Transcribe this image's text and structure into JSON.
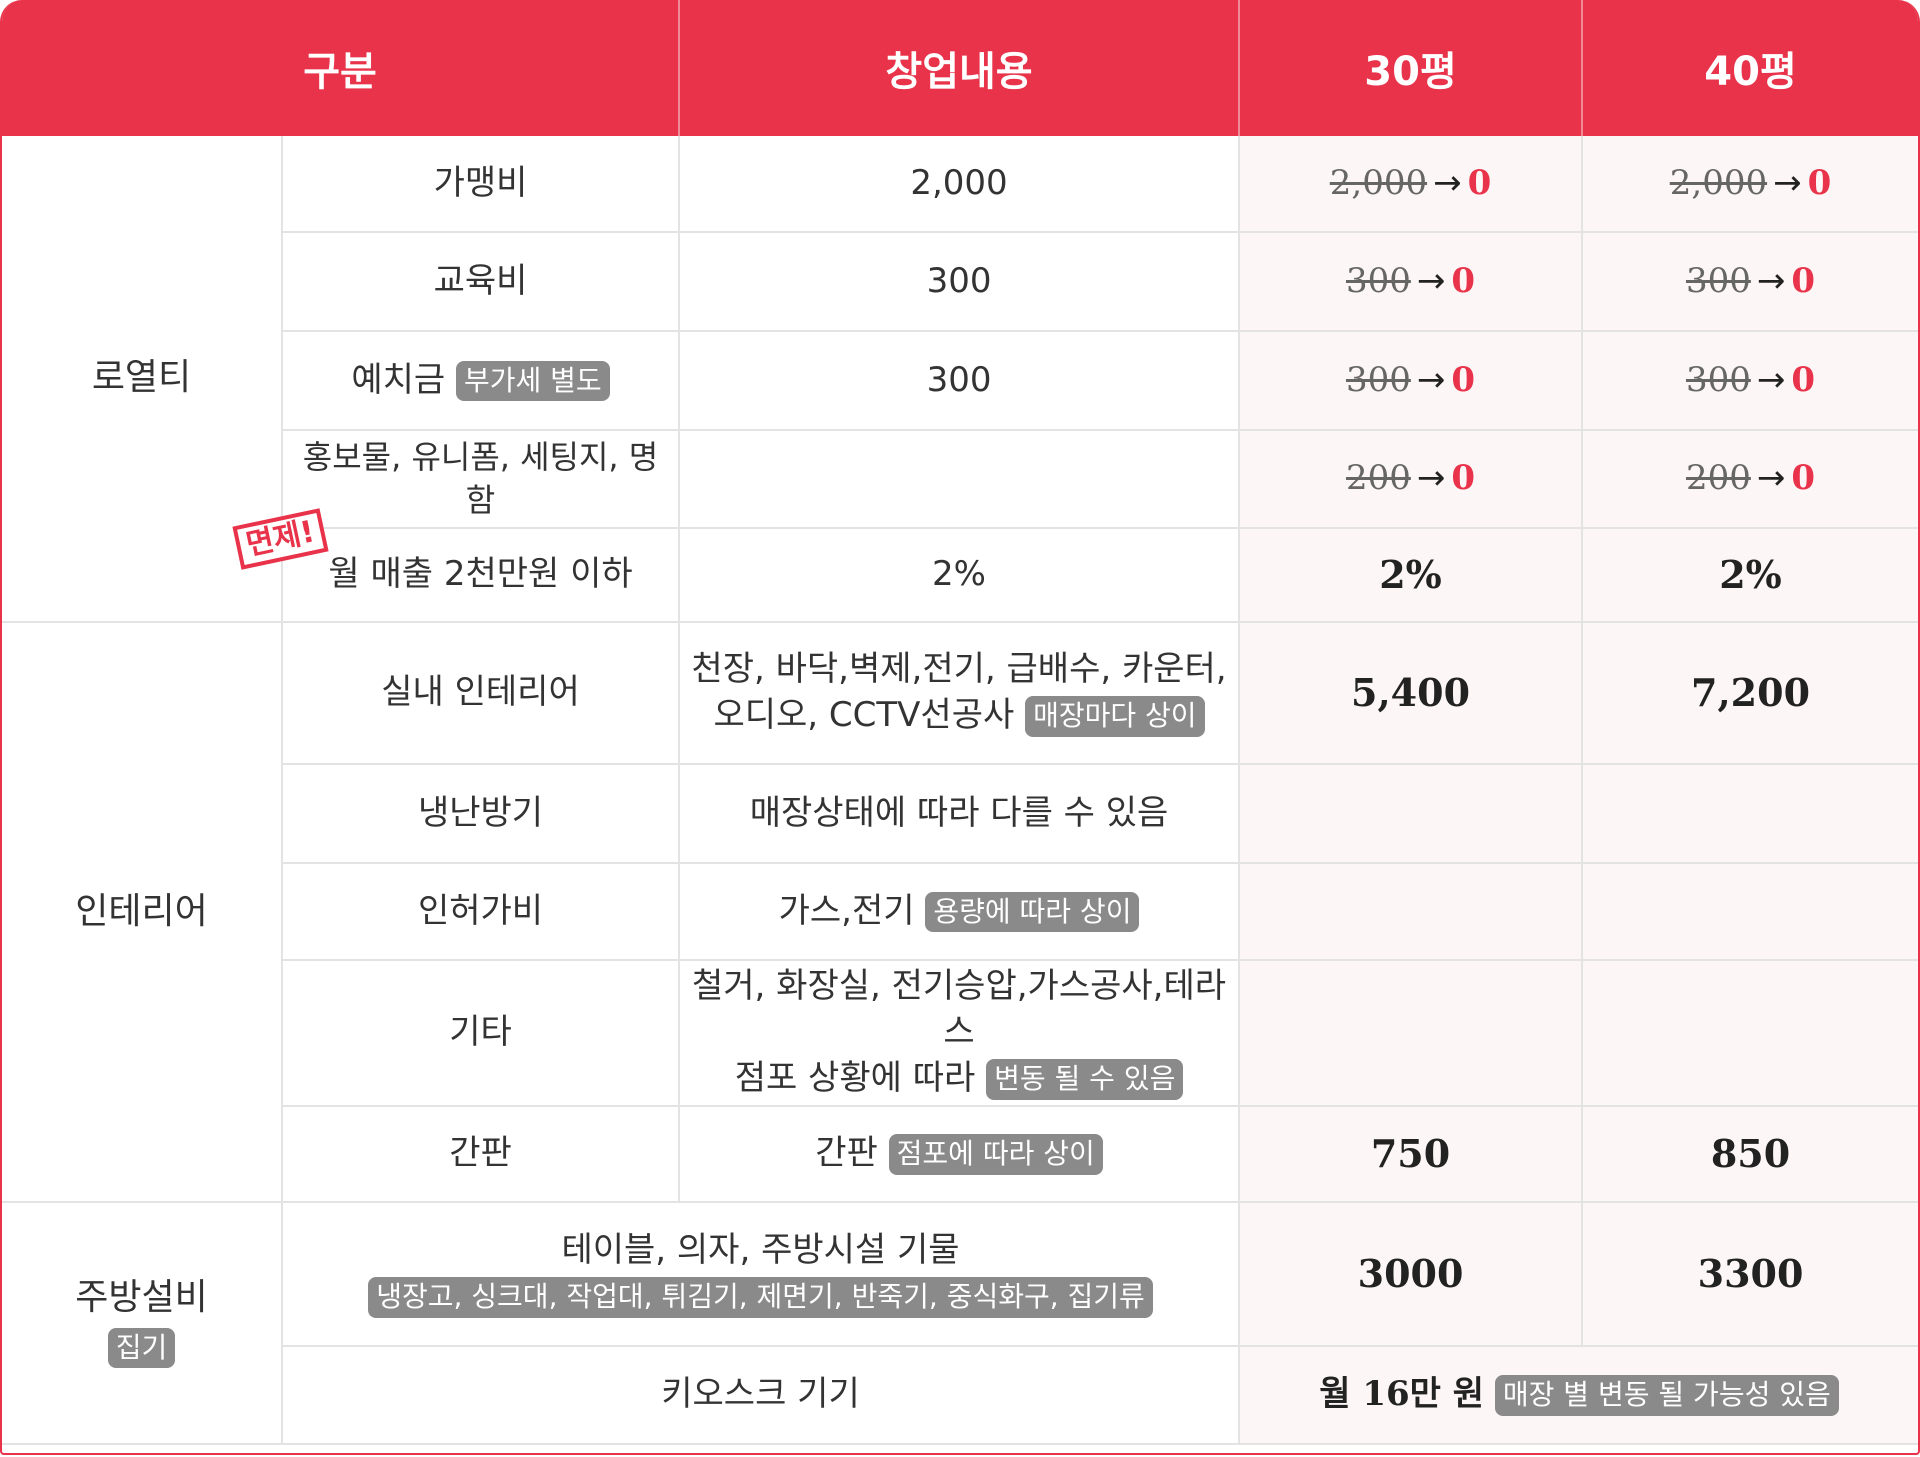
{
  "header": {
    "col1": "구분",
    "col2": "창업내용",
    "col3": "30평",
    "col4": "40평"
  },
  "royalty": {
    "category": "로열티",
    "stamp": "면제!",
    "rows": [
      {
        "item": "가맹비",
        "content": "2,000",
        "p30_old": "2,000",
        "p30_new": "0",
        "p40_old": "2,000",
        "p40_new": "0"
      },
      {
        "item": "교육비",
        "content": "300",
        "p30_old": "300",
        "p30_new": "0",
        "p40_old": "300",
        "p40_new": "0"
      },
      {
        "item": "예치금",
        "badge": "부가세 별도",
        "content": "300",
        "p30_old": "300",
        "p30_new": "0",
        "p40_old": "300",
        "p40_new": "0"
      },
      {
        "item": "홍보물, 유니폼, 세팅지, 명함",
        "content": "",
        "p30_old": "200",
        "p30_new": "0",
        "p40_old": "200",
        "p40_new": "0"
      },
      {
        "item": "월 매출 2천만원 이하",
        "content": "2%",
        "p30": "2%",
        "p40": "2%"
      }
    ]
  },
  "arrow": "→",
  "interior": {
    "category": "인테리어",
    "rows": [
      {
        "item": "실내 인테리어",
        "content_line1": "천장, 바닥,벽제,전기, 급배수, 카운터,",
        "content_line2": "오디오, CCTV선공사",
        "badge": "매장마다 상이",
        "p30": "5,400",
        "p40": "7,200"
      },
      {
        "item": "냉난방기",
        "content": "매장상태에 따라 다를 수 있음"
      },
      {
        "item": "인허가비",
        "content": "가스,전기",
        "badge": "용량에 따라 상이"
      },
      {
        "item": "기타",
        "content_line1": "철거, 화장실, 전기승압,가스공사,테라스",
        "content_line2": "점포 상황에 따라",
        "badge": "변동 될 수 있음"
      },
      {
        "item": "간판",
        "content": "간판",
        "badge": "점포에 따라 상이",
        "p30": "750",
        "p40": "850"
      }
    ]
  },
  "kitchen": {
    "category": "주방설비",
    "category_badge": "집기",
    "rows": [
      {
        "content": "테이블, 의자, 주방시설 기물",
        "badge": "냉장고, 싱크대, 작업대, 튀김기, 제면기, 반죽기, 중식화구, 집기류",
        "p30": "3000",
        "p40": "3300"
      },
      {
        "content": "키오스크 기기",
        "monthly": "월 16만 원",
        "badge": "매장 별 변동 될 가능성 있음"
      }
    ]
  },
  "colors": {
    "accent": "#e8334a",
    "badge": "#8a8a8a",
    "pink_bg": "#fdf6f6"
  }
}
